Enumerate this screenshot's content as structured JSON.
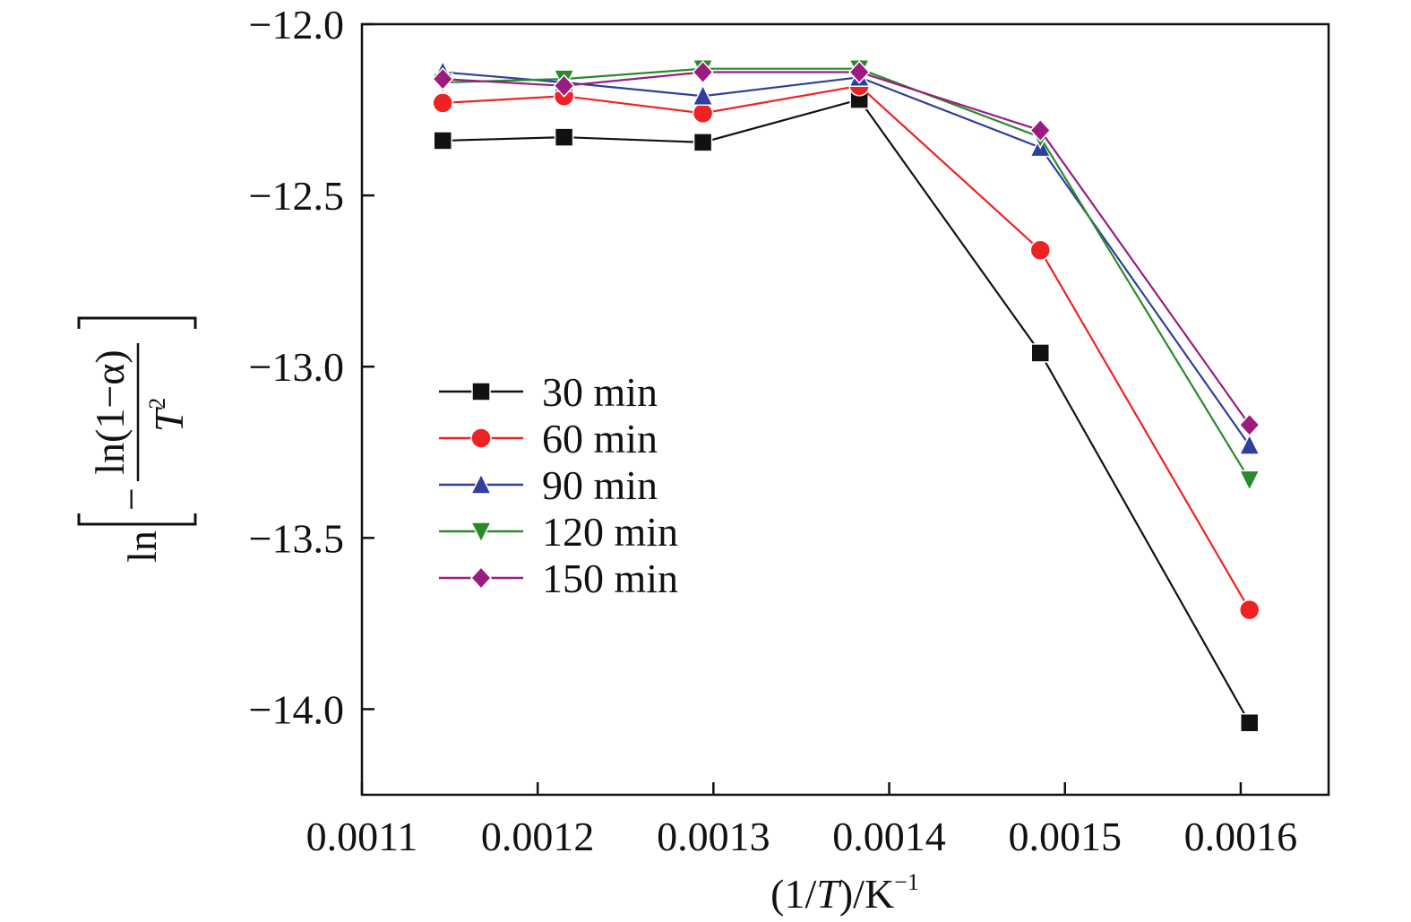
{
  "chart_data": {
    "type": "line",
    "title": "",
    "xlabel": {
      "pre": "(1/",
      "var": "T",
      "post": ")/K",
      "sup": "−1"
    },
    "ylabel": {
      "outer": "ln",
      "numerator": "ln(1−α)",
      "denominator_var": "T",
      "denominator_sup": "2",
      "minus": "−"
    },
    "xlim": [
      0.0011,
      0.00165
    ],
    "ylim": [
      -14.25,
      -12.0
    ],
    "x_ticks": [
      0.0011,
      0.0012,
      0.0013,
      0.0014,
      0.0015,
      0.0016
    ],
    "x_tick_labels": [
      "0.0011",
      "0.0012",
      "0.0013",
      "0.0014",
      "0.0015",
      "0.0016"
    ],
    "y_ticks": [
      -12.0,
      -12.5,
      -13.0,
      -13.5,
      -14.0
    ],
    "y_tick_labels": [
      "−12.0",
      "−12.5",
      "−13.0",
      "−13.5",
      "−14.0"
    ],
    "grid": false,
    "legend_position": "center-left",
    "x": [
      0.001146,
      0.001215,
      0.001294,
      0.001383,
      0.001486,
      0.001605
    ],
    "series": [
      {
        "name": "30 min",
        "marker": "square",
        "color": "#111111",
        "values": [
          -12.34,
          -12.33,
          -12.345,
          -12.22,
          -12.96,
          -14.04
        ]
      },
      {
        "name": "60 min",
        "marker": "circle",
        "color": "#ee2222",
        "values": [
          -12.23,
          -12.21,
          -12.26,
          -12.18,
          -12.66,
          -13.71
        ]
      },
      {
        "name": "90 min",
        "marker": "triangle-up",
        "color": "#2e3f9e",
        "values": [
          -12.14,
          -12.17,
          -12.21,
          -12.155,
          -12.36,
          -13.23
        ]
      },
      {
        "name": "120 min",
        "marker": "triangle-down",
        "color": "#2a8a2a",
        "values": [
          -12.17,
          -12.16,
          -12.13,
          -12.13,
          -12.33,
          -13.33
        ]
      },
      {
        "name": "150 min",
        "marker": "diamond",
        "color": "#9b1c7e",
        "values": [
          -12.16,
          -12.18,
          -12.14,
          -12.14,
          -12.31,
          -13.17
        ]
      }
    ]
  }
}
